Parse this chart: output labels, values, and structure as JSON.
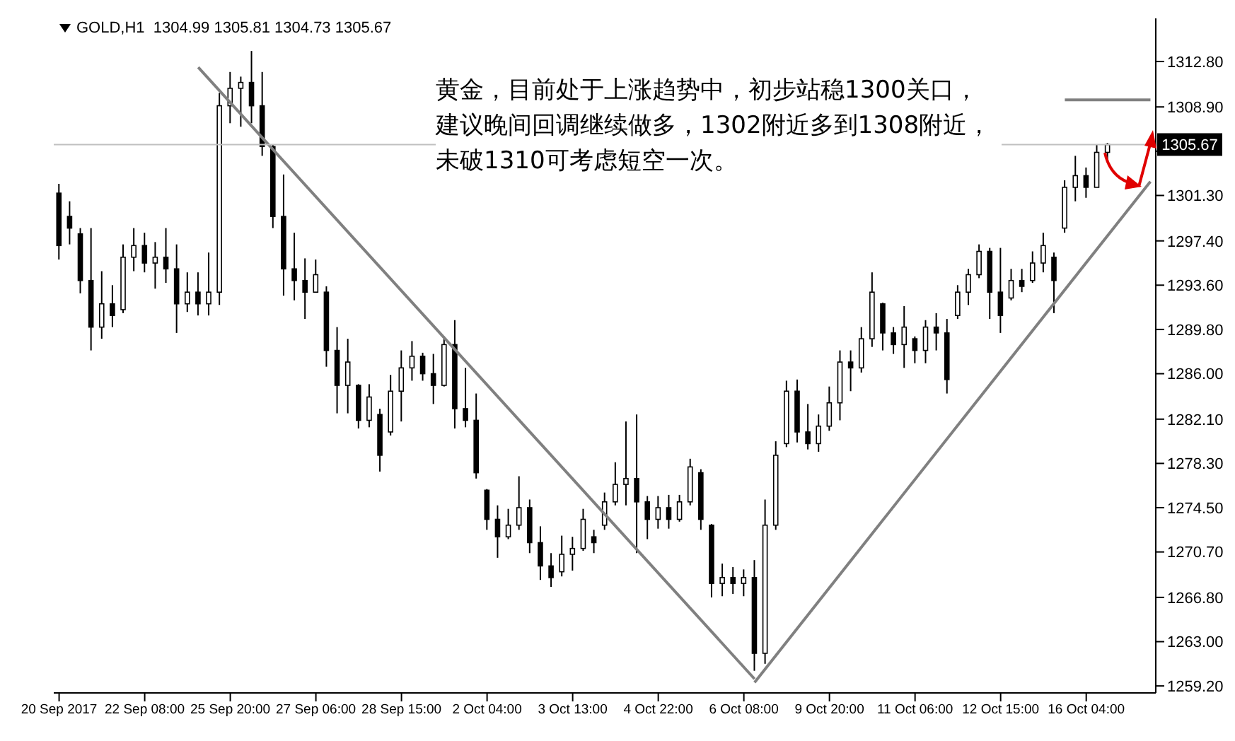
{
  "chart_data": {
    "type": "candlestick",
    "title": "GOLD,H1  1304.99 1305.81 1304.73 1305.67",
    "annotations": [
      "黄金，目前处于上涨趋势中，初步站稳1300关口，建议晚间回调继续做多，1302附近多到1308附近，未破1310可考虑短空一次。"
    ],
    "categories": [
      "20 Sep 2017",
      null,
      null,
      null,
      null,
      null,
      null,
      null,
      "22 Sep 08:00",
      null,
      null,
      null,
      null,
      null,
      null,
      null,
      "25 Sep 20:00",
      null,
      null,
      null,
      null,
      null,
      null,
      null,
      "27 Sep 06:00",
      null,
      null,
      null,
      null,
      null,
      null,
      null,
      "28 Sep 15:00",
      null,
      null,
      null,
      null,
      null,
      null,
      null,
      "2 Oct 04:00",
      null,
      null,
      null,
      null,
      null,
      null,
      null,
      "3 Oct 13:00",
      null,
      null,
      null,
      null,
      null,
      null,
      null,
      "4 Oct 22:00",
      null,
      null,
      null,
      null,
      null,
      null,
      null,
      "6 Oct 08:00",
      null,
      null,
      null,
      null,
      null,
      null,
      null,
      "9 Oct 20:00",
      null,
      null,
      null,
      null,
      null,
      null,
      null,
      "11 Oct 06:00",
      null,
      null,
      null,
      null,
      null,
      null,
      null,
      "12 Oct 15:00",
      null,
      null,
      null,
      null,
      null,
      null,
      null,
      "16 Oct 04:00",
      null,
      null,
      null,
      null,
      null,
      null
    ],
    "color": "#000000",
    "ohlc": [
      [
        1301.5,
        1302.3,
        1295.8,
        1297.0
      ],
      [
        1299.5,
        1300.8,
        1297.1,
        1298.5
      ],
      [
        1298.0,
        1298.5,
        1292.9,
        1294.0
      ],
      [
        1294.0,
        1298.5,
        1288.0,
        1290.0
      ],
      [
        1290.0,
        1294.8,
        1289.0,
        1292.0
      ],
      [
        1292.0,
        1293.6,
        1290.0,
        1291.0
      ],
      [
        1291.5,
        1297.1,
        1291.2,
        1296.0
      ],
      [
        1296.0,
        1298.5,
        1294.8,
        1297.0
      ],
      [
        1297.0,
        1298.1,
        1294.7,
        1295.5
      ],
      [
        1295.5,
        1297.3,
        1293.3,
        1296.0
      ],
      [
        1296.0,
        1298.5,
        1293.8,
        1295.0
      ],
      [
        1295.0,
        1297.1,
        1289.5,
        1292.0
      ],
      [
        1292.0,
        1294.7,
        1291.3,
        1293.0
      ],
      [
        1293.0,
        1294.7,
        1291.0,
        1292.0
      ],
      [
        1292.0,
        1296.4,
        1291.0,
        1293.0
      ],
      [
        1293.0,
        1310.1,
        1291.9,
        1309.0
      ],
      [
        1309.0,
        1311.9,
        1307.5,
        1310.5
      ],
      [
        1310.5,
        1311.5,
        1307.2,
        1311.0
      ],
      [
        1311.0,
        1313.7,
        1307.5,
        1309.0
      ],
      [
        1309.0,
        1311.9,
        1304.7,
        1305.5
      ],
      [
        1305.5,
        1305.7,
        1298.5,
        1299.5
      ],
      [
        1299.5,
        1303.1,
        1292.7,
        1295.0
      ],
      [
        1295.0,
        1298.1,
        1292.3,
        1294.0
      ],
      [
        1294.0,
        1295.9,
        1290.7,
        1293.0
      ],
      [
        1293.0,
        1295.8,
        1293.0,
        1294.5
      ],
      [
        1293.0,
        1293.5,
        1286.6,
        1288.0
      ],
      [
        1288.0,
        1290.0,
        1282.6,
        1285.0
      ],
      [
        1285.0,
        1289.0,
        1282.6,
        1287.0
      ],
      [
        1285.0,
        1285.1,
        1281.3,
        1282.0
      ],
      [
        1282.0,
        1285.1,
        1281.4,
        1284.0
      ],
      [
        1282.5,
        1283.0,
        1277.6,
        1279.0
      ],
      [
        1281.0,
        1285.9,
        1280.7,
        1284.5
      ],
      [
        1284.5,
        1288.0,
        1281.9,
        1286.5
      ],
      [
        1286.5,
        1288.8,
        1285.4,
        1287.5
      ],
      [
        1287.5,
        1287.8,
        1285.4,
        1286.0
      ],
      [
        1286.0,
        1287.7,
        1283.4,
        1285.0
      ],
      [
        1285.0,
        1289.2,
        1284.9,
        1288.5
      ],
      [
        1288.5,
        1290.6,
        1281.3,
        1283.0
      ],
      [
        1283.0,
        1286.5,
        1281.4,
        1282.0
      ],
      [
        1282.0,
        1284.3,
        1277.0,
        1277.5
      ],
      [
        1276.0,
        1276.1,
        1272.6,
        1273.5
      ],
      [
        1273.5,
        1274.7,
        1270.2,
        1272.0
      ],
      [
        1272.0,
        1274.4,
        1271.8,
        1273.0
      ],
      [
        1273.0,
        1277.2,
        1272.6,
        1274.5
      ],
      [
        1274.5,
        1275.2,
        1270.6,
        1271.5
      ],
      [
        1271.5,
        1272.9,
        1268.3,
        1269.5
      ],
      [
        1269.5,
        1270.6,
        1267.7,
        1268.5
      ],
      [
        1269.0,
        1272.1,
        1268.6,
        1270.5
      ],
      [
        1270.5,
        1272.0,
        1269.1,
        1271.0
      ],
      [
        1271.0,
        1274.4,
        1270.8,
        1273.5
      ],
      [
        1272.0,
        1272.6,
        1270.6,
        1271.5
      ],
      [
        1273.0,
        1275.8,
        1272.6,
        1275.0
      ],
      [
        1275.0,
        1278.4,
        1274.7,
        1276.5
      ],
      [
        1276.5,
        1281.9,
        1274.7,
        1277.0
      ],
      [
        1277.0,
        1282.5,
        1270.6,
        1275.0
      ],
      [
        1275.0,
        1275.5,
        1271.8,
        1273.5
      ],
      [
        1273.5,
        1275.5,
        1272.7,
        1274.5
      ],
      [
        1274.5,
        1275.6,
        1272.7,
        1273.5
      ],
      [
        1273.5,
        1275.6,
        1273.3,
        1275.0
      ],
      [
        1275.0,
        1278.7,
        1274.7,
        1278.0
      ],
      [
        1277.5,
        1277.8,
        1272.6,
        1273.5
      ],
      [
        1273.0,
        1273.1,
        1266.8,
        1268.0
      ],
      [
        1268.0,
        1269.7,
        1266.9,
        1268.5
      ],
      [
        1268.5,
        1269.4,
        1267.1,
        1268.0
      ],
      [
        1268.0,
        1269.2,
        1266.9,
        1268.5
      ],
      [
        1268.5,
        1270.0,
        1260.5,
        1262.0
      ],
      [
        1262.0,
        1275.2,
        1261.1,
        1273.0
      ],
      [
        1273.0,
        1280.2,
        1272.6,
        1279.0
      ],
      [
        1280.0,
        1285.4,
        1279.7,
        1284.5
      ],
      [
        1284.5,
        1285.5,
        1280.1,
        1281.0
      ],
      [
        1281.0,
        1283.4,
        1279.5,
        1280.0
      ],
      [
        1280.0,
        1282.5,
        1279.3,
        1281.5
      ],
      [
        1281.5,
        1284.9,
        1281.1,
        1283.5
      ],
      [
        1283.5,
        1288.0,
        1282.0,
        1287.0
      ],
      [
        1287.0,
        1288.0,
        1284.5,
        1286.5
      ],
      [
        1286.5,
        1290.0,
        1286.1,
        1289.0
      ],
      [
        1289.0,
        1294.7,
        1288.3,
        1293.0
      ],
      [
        1292.0,
        1292.1,
        1288.0,
        1289.5
      ],
      [
        1289.5,
        1290.0,
        1287.7,
        1288.5
      ],
      [
        1288.5,
        1291.8,
        1286.5,
        1290.0
      ],
      [
        1289.0,
        1289.2,
        1286.9,
        1288.0
      ],
      [
        1288.0,
        1290.6,
        1286.9,
        1290.0
      ],
      [
        1290.0,
        1291.2,
        1288.0,
        1289.5
      ],
      [
        1289.5,
        1290.7,
        1284.3,
        1285.5
      ],
      [
        1291.0,
        1293.6,
        1290.7,
        1293.0
      ],
      [
        1293.0,
        1295.0,
        1291.9,
        1294.5
      ],
      [
        1294.5,
        1297.1,
        1294.2,
        1296.5
      ],
      [
        1296.5,
        1296.8,
        1290.7,
        1293.0
      ],
      [
        1293.0,
        1296.8,
        1289.5,
        1291.0
      ],
      [
        1292.5,
        1295.0,
        1292.3,
        1294.0
      ],
      [
        1294.0,
        1295.0,
        1293.0,
        1293.5
      ],
      [
        1294.0,
        1296.5,
        1293.8,
        1295.5
      ],
      [
        1295.5,
        1298.1,
        1294.7,
        1297.0
      ],
      [
        1296.0,
        1296.4,
        1291.2,
        1294.0
      ],
      [
        1298.5,
        1302.6,
        1298.1,
        1302.0
      ],
      [
        1302.0,
        1304.7,
        1300.8,
        1303.0
      ],
      [
        1303.0,
        1303.7,
        1301.1,
        1302.0
      ],
      [
        1302.0,
        1305.7,
        1302.0,
        1305.0
      ],
      [
        1305.0,
        1305.8,
        1304.3,
        1305.67
      ],
      null,
      null,
      null,
      null
    ],
    "series": [
      {
        "type": "line",
        "color": "#808080",
        "values": [
          null,
          null,
          null,
          null,
          null,
          null,
          null,
          null,
          null,
          null,
          null,
          null,
          null,
          1312.3,
          null,
          null,
          null,
          null,
          null,
          null,
          null,
          null,
          null,
          null,
          null,
          null,
          null,
          null,
          null,
          null,
          null,
          null,
          null,
          null,
          null,
          null,
          null,
          null,
          null,
          null,
          null,
          null,
          null,
          null,
          null,
          null,
          null,
          null,
          null,
          null,
          null,
          null,
          null,
          null,
          null,
          null,
          null,
          null,
          null,
          null,
          null,
          null,
          null,
          null,
          null,
          1259.8,
          null,
          null,
          null,
          null,
          null,
          null,
          null,
          null,
          null,
          null,
          null,
          null,
          null,
          null,
          null,
          null,
          null,
          null,
          null,
          null,
          null,
          null,
          null,
          null,
          null,
          null,
          null,
          null,
          null,
          null,
          null,
          null,
          null,
          null,
          null,
          null,
          null
        ]
      },
      {
        "type": "line",
        "color": "#808080",
        "values": [
          null,
          null,
          null,
          null,
          null,
          null,
          null,
          null,
          null,
          null,
          null,
          null,
          null,
          null,
          null,
          null,
          null,
          null,
          null,
          null,
          null,
          null,
          null,
          null,
          null,
          null,
          null,
          null,
          null,
          null,
          null,
          null,
          null,
          null,
          null,
          null,
          null,
          null,
          null,
          null,
          null,
          null,
          null,
          null,
          null,
          null,
          null,
          null,
          null,
          null,
          null,
          null,
          null,
          null,
          null,
          null,
          null,
          null,
          null,
          null,
          null,
          null,
          null,
          null,
          null,
          1259.5,
          null,
          null,
          null,
          null,
          null,
          null,
          null,
          null,
          null,
          null,
          null,
          null,
          null,
          null,
          null,
          null,
          null,
          null,
          null,
          null,
          null,
          null,
          null,
          null,
          null,
          null,
          null,
          null,
          null,
          null,
          null,
          null,
          null,
          null,
          null,
          null,
          1302.5
        ]
      },
      {
        "type": "line",
        "color": "#808080",
        "values": [
          null,
          null,
          null,
          null,
          null,
          null,
          null,
          null,
          null,
          null,
          null,
          null,
          null,
          null,
          null,
          null,
          null,
          null,
          null,
          null,
          null,
          null,
          null,
          null,
          null,
          null,
          null,
          null,
          null,
          null,
          null,
          null,
          null,
          null,
          null,
          null,
          null,
          null,
          null,
          null,
          null,
          null,
          null,
          null,
          null,
          null,
          null,
          null,
          null,
          null,
          null,
          null,
          null,
          null,
          null,
          null,
          null,
          null,
          null,
          null,
          null,
          null,
          null,
          null,
          null,
          null,
          null,
          null,
          null,
          null,
          null,
          null,
          null,
          null,
          null,
          null,
          null,
          null,
          null,
          null,
          null,
          null,
          null,
          null,
          null,
          null,
          null,
          null,
          null,
          null,
          null,
          null,
          null,
          null,
          1309.5,
          1309.5,
          1309.5,
          1309.5,
          1309.5,
          1309.5,
          1309.5,
          1309.5,
          1309.5
        ]
      }
    ],
    "ylim": [
      1258.6,
      1316.5
    ],
    "yticks": [
      {
        "value": 1259.2,
        "label": "1259.20"
      },
      {
        "value": 1263,
        "label": "1263.00"
      },
      {
        "value": 1266.8,
        "label": "1266.80"
      },
      {
        "value": 1270.7,
        "label": "1270.70"
      },
      {
        "value": 1274.5,
        "label": "1274.50"
      },
      {
        "value": 1278.3,
        "label": "1278.30"
      },
      {
        "value": 1282.1,
        "label": "1282.10"
      },
      {
        "value": 1286,
        "label": "1286.00"
      },
      {
        "value": 1289.8,
        "label": "1289.80"
      },
      {
        "value": 1293.6,
        "label": "1293.60"
      },
      {
        "value": 1297.4,
        "label": "1297.40"
      },
      {
        "value": 1301.3,
        "label": "1301.30"
      },
      {
        "value": 1305.1,
        "label": null
      },
      {
        "value": 1308.9,
        "label": "1308.90"
      },
      {
        "value": 1312.8,
        "label": "1312.80"
      }
    ],
    "ref_lines": [
      {
        "axis": "y",
        "value": 1305.67,
        "label": "1305.67",
        "color": "#c0c0c0"
      }
    ]
  }
}
